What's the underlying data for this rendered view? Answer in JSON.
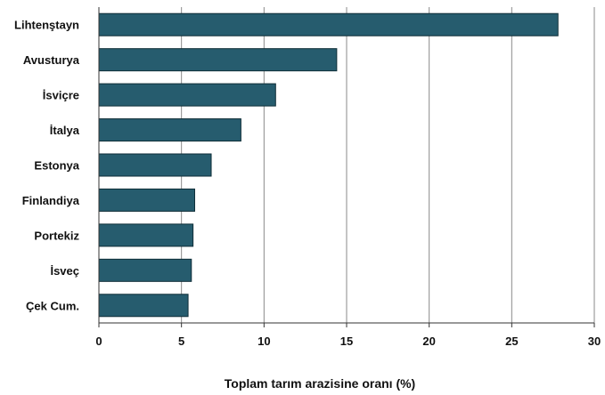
{
  "chart_data": {
    "type": "bar",
    "orientation": "horizontal",
    "categories": [
      "Lihtenştayn",
      "Avusturya",
      "İsviçre",
      "İtalya",
      "Estonya",
      "Finlandiya",
      "Portekiz",
      "İsveç",
      "Çek Cum."
    ],
    "values": [
      27.8,
      14.4,
      10.7,
      8.6,
      6.8,
      5.8,
      5.7,
      5.6,
      5.4
    ],
    "xlabel": "Toplam tarım arazisine oranı (%)",
    "ylabel": "",
    "xlim": [
      0,
      30
    ],
    "xticks": [
      "0",
      "5",
      "10",
      "15",
      "20",
      "25",
      "30"
    ],
    "grid": "vertical lines",
    "legend": "none",
    "bar_color": "#265c6e",
    "bar_border_color": "#0f2e38"
  }
}
